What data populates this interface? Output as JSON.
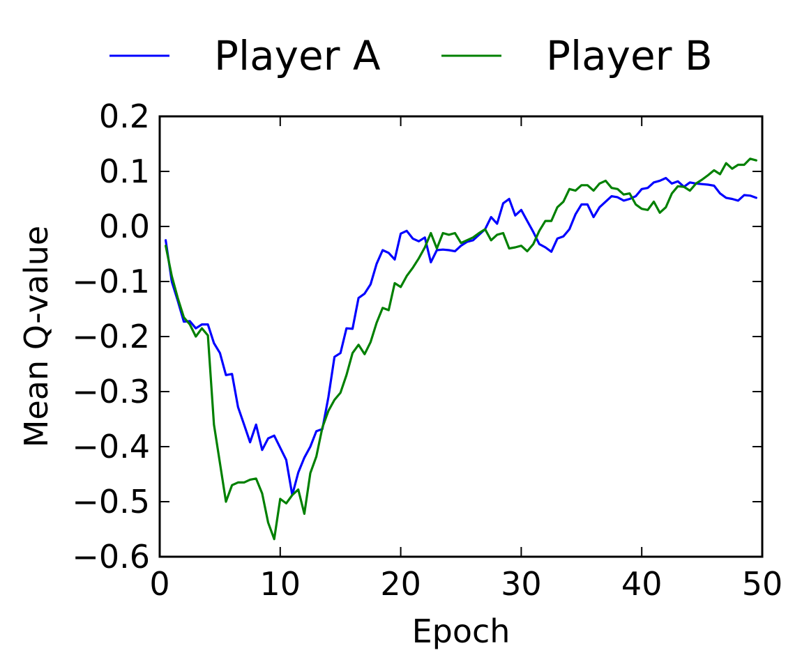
{
  "chart_data": {
    "type": "line",
    "title": "",
    "xlabel": "Epoch",
    "ylabel": "Mean Q-value",
    "xlim": [
      0,
      50
    ],
    "ylim": [
      -0.6,
      0.2
    ],
    "xticks": [
      0,
      10,
      20,
      30,
      40,
      50
    ],
    "xtick_labels": [
      "0",
      "10",
      "20",
      "30",
      "40",
      "50"
    ],
    "yticks": [
      0.2,
      0.1,
      0.0,
      -0.1,
      -0.2,
      -0.3,
      -0.4,
      -0.5,
      -0.6
    ],
    "ytick_labels": [
      "0.2",
      "0.1",
      "0.0",
      "−0.1",
      "−0.2",
      "−0.3",
      "−0.4",
      "−0.5",
      "−0.6"
    ],
    "grid": false,
    "legend_position": "top",
    "series": [
      {
        "name": "Player A",
        "color": "#0000ff",
        "x": [
          0.5,
          1,
          1.5,
          2,
          2.5,
          3,
          3.5,
          4,
          4.5,
          5,
          5.5,
          6,
          6.5,
          7,
          7.5,
          8,
          8.5,
          9,
          9.5,
          10,
          10.5,
          11,
          11.5,
          12,
          12.5,
          13,
          13.5,
          14,
          14.5,
          15,
          15.5,
          16,
          16.5,
          17,
          17.5,
          18,
          18.5,
          19,
          19.5,
          20,
          20.5,
          21,
          21.5,
          22,
          22.5,
          23,
          23.5,
          24,
          24.5,
          25,
          25.5,
          26,
          26.5,
          27,
          27.5,
          28,
          28.5,
          29,
          29.5,
          30,
          30.5,
          31,
          31.5,
          32,
          32.5,
          33,
          33.5,
          34,
          34.5,
          35,
          35.5,
          36,
          36.5,
          37,
          37.5,
          38,
          38.5,
          39,
          39.5,
          40,
          40.5,
          41,
          41.5,
          42,
          42.5,
          43,
          43.5,
          44,
          44.5,
          45,
          45.5,
          46,
          46.5,
          47,
          47.5,
          48,
          48.5,
          49,
          49.5
        ],
        "values": [
          -0.025,
          -0.1,
          -0.135,
          -0.173,
          -0.172,
          -0.185,
          -0.178,
          -0.178,
          -0.212,
          -0.23,
          -0.27,
          -0.268,
          -0.328,
          -0.36,
          -0.392,
          -0.36,
          -0.406,
          -0.385,
          -0.38,
          -0.402,
          -0.424,
          -0.488,
          -0.447,
          -0.42,
          -0.4,
          -0.372,
          -0.368,
          -0.31,
          -0.237,
          -0.23,
          -0.185,
          -0.186,
          -0.13,
          -0.122,
          -0.105,
          -0.068,
          -0.043,
          -0.048,
          -0.06,
          -0.013,
          -0.008,
          -0.022,
          -0.027,
          -0.02,
          -0.065,
          -0.043,
          -0.042,
          -0.043,
          -0.045,
          -0.035,
          -0.028,
          -0.025,
          -0.015,
          -0.005,
          0.017,
          0.005,
          0.042,
          0.05,
          0.02,
          0.03,
          0.01,
          -0.01,
          -0.032,
          -0.038,
          -0.046,
          -0.022,
          -0.018,
          -0.005,
          0.022,
          0.04,
          0.04,
          0.017,
          0.035,
          0.045,
          0.055,
          0.053,
          0.047,
          0.05,
          0.055,
          0.068,
          0.07,
          0.08,
          0.083,
          0.088,
          0.078,
          0.082,
          0.072,
          0.08,
          0.078,
          0.077,
          0.076,
          0.074,
          0.06,
          0.052,
          0.05,
          0.047,
          0.057,
          0.056,
          0.052
        ]
      },
      {
        "name": "Player B",
        "color": "#008000",
        "x": [
          0.5,
          1,
          1.5,
          2,
          2.5,
          3,
          3.5,
          4,
          4.5,
          5,
          5.5,
          6,
          6.5,
          7,
          7.5,
          8,
          8.5,
          9,
          9.5,
          10,
          10.5,
          11,
          11.5,
          12,
          12.5,
          13,
          13.5,
          14,
          14.5,
          15,
          15.5,
          16,
          16.5,
          17,
          17.5,
          18,
          18.5,
          19,
          19.5,
          20,
          20.5,
          21,
          21.5,
          22,
          22.5,
          23,
          23.5,
          24,
          24.5,
          25,
          25.5,
          26,
          26.5,
          27,
          27.5,
          28,
          28.5,
          29,
          29.5,
          30,
          30.5,
          31,
          31.5,
          32,
          32.5,
          33,
          33.5,
          34,
          34.5,
          35,
          35.5,
          36,
          36.5,
          37,
          37.5,
          38,
          38.5,
          39,
          39.5,
          40,
          40.5,
          41,
          41.5,
          42,
          42.5,
          43,
          43.5,
          44,
          44.5,
          45,
          45.5,
          46,
          46.5,
          47,
          47.5,
          48,
          48.5,
          49,
          49.5
        ],
        "values": [
          -0.035,
          -0.09,
          -0.13,
          -0.165,
          -0.178,
          -0.2,
          -0.185,
          -0.198,
          -0.36,
          -0.43,
          -0.5,
          -0.47,
          -0.465,
          -0.465,
          -0.46,
          -0.458,
          -0.485,
          -0.538,
          -0.568,
          -0.495,
          -0.503,
          -0.488,
          -0.478,
          -0.522,
          -0.448,
          -0.418,
          -0.365,
          -0.335,
          -0.315,
          -0.302,
          -0.27,
          -0.23,
          -0.215,
          -0.232,
          -0.21,
          -0.175,
          -0.148,
          -0.152,
          -0.103,
          -0.11,
          -0.09,
          -0.075,
          -0.058,
          -0.038,
          -0.012,
          -0.04,
          -0.012,
          -0.015,
          -0.012,
          -0.03,
          -0.025,
          -0.02,
          -0.012,
          -0.005,
          -0.025,
          -0.015,
          -0.012,
          -0.04,
          -0.038,
          -0.035,
          -0.045,
          -0.032,
          -0.008,
          0.01,
          0.01,
          0.035,
          0.045,
          0.068,
          0.065,
          0.075,
          0.075,
          0.065,
          0.078,
          0.083,
          0.07,
          0.068,
          0.058,
          0.06,
          0.04,
          0.032,
          0.03,
          0.045,
          0.025,
          0.035,
          0.06,
          0.073,
          0.072,
          0.065,
          0.078,
          0.085,
          0.093,
          0.102,
          0.095,
          0.115,
          0.105,
          0.112,
          0.112,
          0.123,
          0.12
        ]
      }
    ]
  }
}
